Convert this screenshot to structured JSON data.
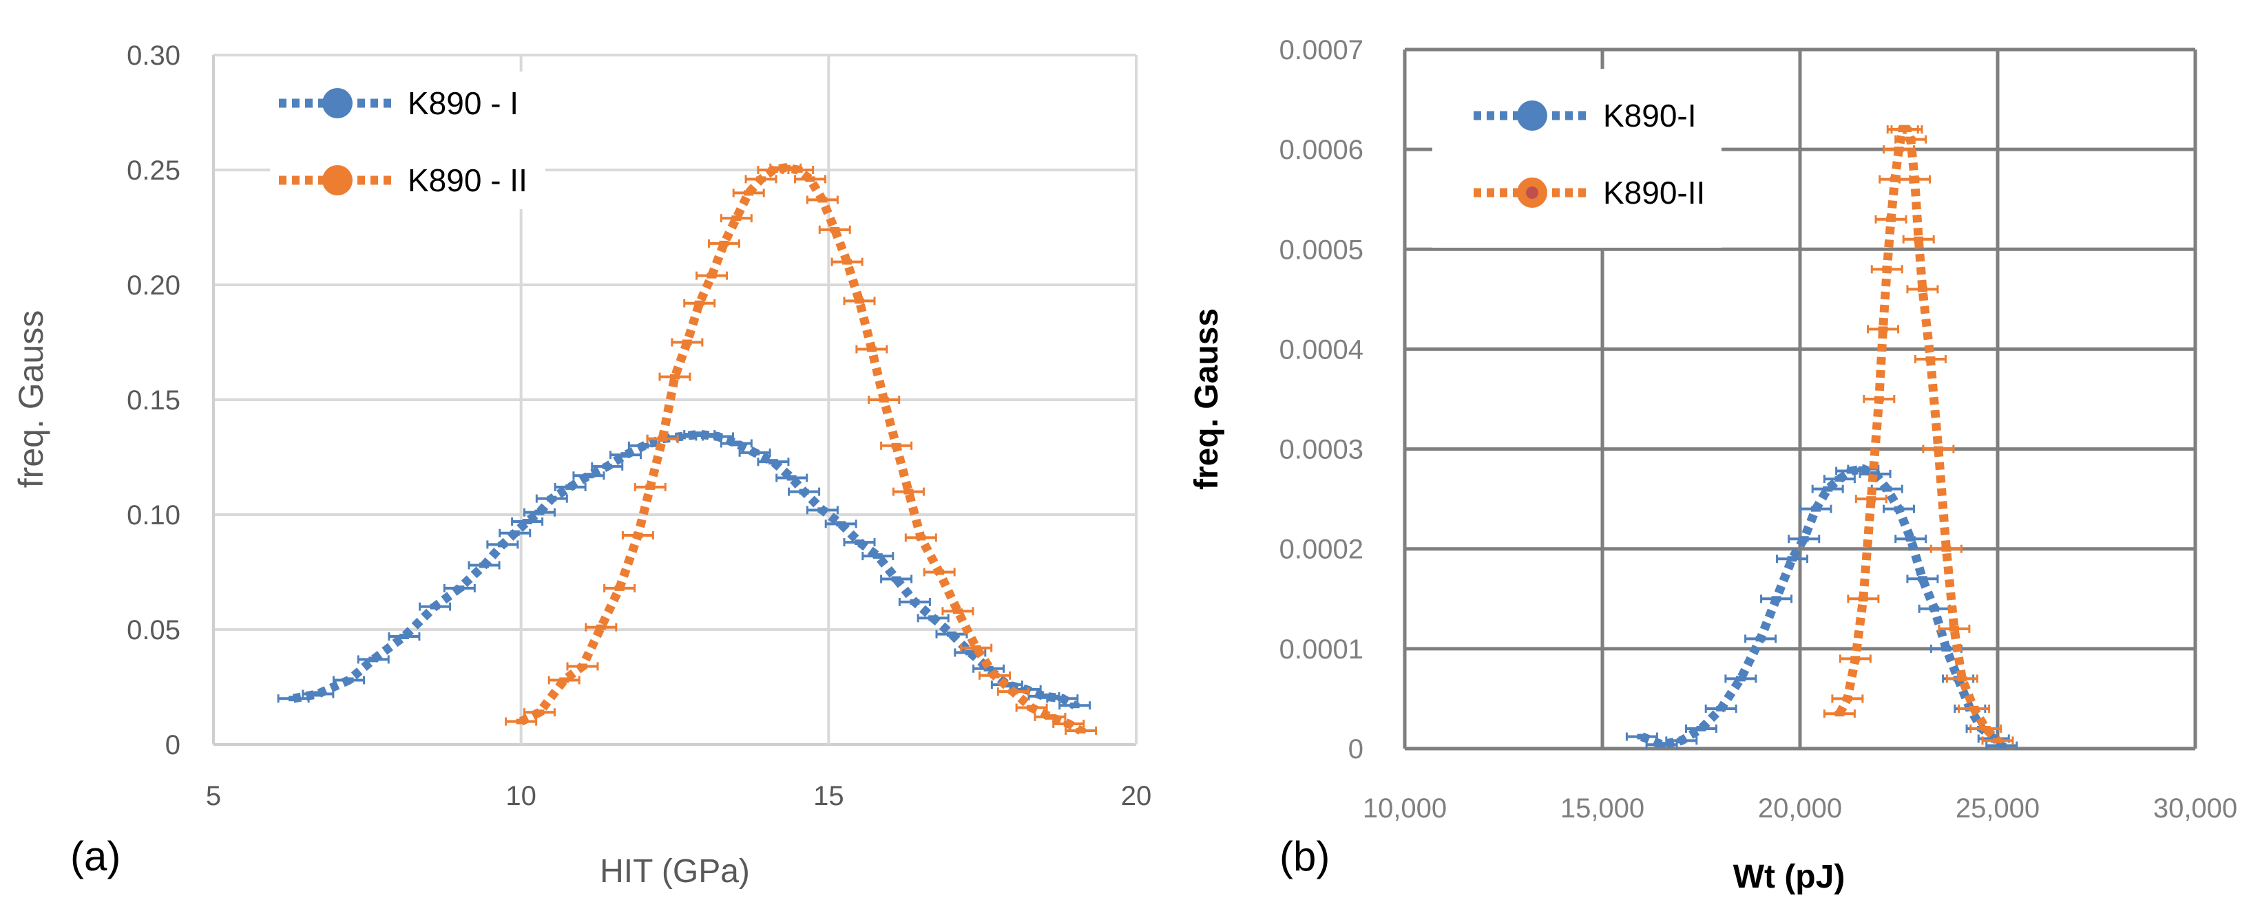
{
  "chart_data": [
    {
      "panel": "(a)",
      "type": "scatter",
      "title": "",
      "xlabel": "HIT (GPa)",
      "ylabel": "freq. Gauss",
      "xlim": [
        5,
        20
      ],
      "ylim": [
        0,
        0.3
      ],
      "x_ticks": [
        "5",
        "10",
        "15",
        "20"
      ],
      "y_ticks": [
        "0",
        "0.05",
        "0.10",
        "0.15",
        "0.20",
        "0.25",
        "0.30"
      ],
      "grid": true,
      "legend_position": "top-left",
      "series": [
        {
          "name": "K890 - I",
          "color": "#4E81BD",
          "points": [
            [
              6.3,
              0.02
            ],
            [
              6.7,
              0.022
            ],
            [
              7.2,
              0.028
            ],
            [
              7.6,
              0.037
            ],
            [
              8.1,
              0.047
            ],
            [
              8.6,
              0.06
            ],
            [
              9.0,
              0.068
            ],
            [
              9.4,
              0.078
            ],
            [
              9.7,
              0.087
            ],
            [
              9.9,
              0.092
            ],
            [
              10.1,
              0.097
            ],
            [
              10.3,
              0.101
            ],
            [
              10.5,
              0.107
            ],
            [
              10.8,
              0.112
            ],
            [
              11.1,
              0.117
            ],
            [
              11.4,
              0.121
            ],
            [
              11.7,
              0.126
            ],
            [
              12.0,
              0.13
            ],
            [
              12.3,
              0.133
            ],
            [
              12.6,
              0.134
            ],
            [
              12.9,
              0.135
            ],
            [
              13.2,
              0.134
            ],
            [
              13.5,
              0.131
            ],
            [
              13.8,
              0.127
            ],
            [
              14.1,
              0.123
            ],
            [
              14.4,
              0.116
            ],
            [
              14.6,
              0.11
            ],
            [
              14.9,
              0.102
            ],
            [
              15.2,
              0.096
            ],
            [
              15.5,
              0.088
            ],
            [
              15.8,
              0.082
            ],
            [
              16.1,
              0.072
            ],
            [
              16.4,
              0.062
            ],
            [
              16.7,
              0.055
            ],
            [
              17.0,
              0.048
            ],
            [
              17.3,
              0.04
            ],
            [
              17.6,
              0.033
            ],
            [
              17.9,
              0.026
            ],
            [
              18.2,
              0.024
            ],
            [
              18.5,
              0.021
            ],
            [
              18.8,
              0.02
            ],
            [
              19.0,
              0.017
            ]
          ]
        },
        {
          "name": "K890 - II",
          "color": "#ED7D31",
          "points": [
            [
              10.0,
              0.01
            ],
            [
              10.3,
              0.014
            ],
            [
              10.7,
              0.028
            ],
            [
              11.0,
              0.034
            ],
            [
              11.3,
              0.051
            ],
            [
              11.6,
              0.068
            ],
            [
              11.9,
              0.091
            ],
            [
              12.1,
              0.112
            ],
            [
              12.3,
              0.133
            ],
            [
              12.5,
              0.16
            ],
            [
              12.7,
              0.175
            ],
            [
              12.9,
              0.192
            ],
            [
              13.1,
              0.204
            ],
            [
              13.3,
              0.218
            ],
            [
              13.5,
              0.229
            ],
            [
              13.7,
              0.24
            ],
            [
              13.9,
              0.246
            ],
            [
              14.1,
              0.25
            ],
            [
              14.3,
              0.251
            ],
            [
              14.5,
              0.25
            ],
            [
              14.7,
              0.246
            ],
            [
              14.9,
              0.237
            ],
            [
              15.1,
              0.224
            ],
            [
              15.3,
              0.21
            ],
            [
              15.5,
              0.193
            ],
            [
              15.7,
              0.172
            ],
            [
              15.9,
              0.15
            ],
            [
              16.1,
              0.13
            ],
            [
              16.3,
              0.11
            ],
            [
              16.5,
              0.09
            ],
            [
              16.8,
              0.075
            ],
            [
              17.1,
              0.058
            ],
            [
              17.4,
              0.042
            ],
            [
              17.7,
              0.03
            ],
            [
              18.0,
              0.023
            ],
            [
              18.3,
              0.016
            ],
            [
              18.6,
              0.012
            ],
            [
              18.9,
              0.009
            ],
            [
              19.1,
              0.006
            ]
          ]
        }
      ]
    },
    {
      "panel": "(b)",
      "type": "scatter",
      "title": "",
      "xlabel": "Wt (pJ)",
      "ylabel": "freq. Gauss",
      "xlim": [
        10000,
        30000
      ],
      "ylim": [
        0,
        0.0007
      ],
      "x_ticks": [
        "10,000",
        "15,000",
        "20,000",
        "25,000",
        "30,000"
      ],
      "y_ticks": [
        "0",
        "0.0001",
        "0.0002",
        "0.0003",
        "0.0004",
        "0.0005",
        "0.0006",
        "0.0007"
      ],
      "grid": true,
      "legend_position": "top-left",
      "series": [
        {
          "name": "K890-I",
          "color": "#4E81BD",
          "points": [
            [
              16000,
              1.2e-05
            ],
            [
              16500,
              4e-06
            ],
            [
              17000,
              8e-06
            ],
            [
              17500,
              2e-05
            ],
            [
              18000,
              4e-05
            ],
            [
              18500,
              7e-05
            ],
            [
              19000,
              0.00011
            ],
            [
              19400,
              0.00015
            ],
            [
              19800,
              0.00019
            ],
            [
              20100,
              0.00021
            ],
            [
              20400,
              0.00024
            ],
            [
              20700,
              0.00026
            ],
            [
              21000,
              0.00027
            ],
            [
              21300,
              0.000278
            ],
            [
              21600,
              0.00028
            ],
            [
              21900,
              0.000275
            ],
            [
              22200,
              0.00026
            ],
            [
              22500,
              0.00024
            ],
            [
              22800,
              0.00021
            ],
            [
              23100,
              0.00017
            ],
            [
              23400,
              0.00014
            ],
            [
              23700,
              0.0001
            ],
            [
              24000,
              7e-05
            ],
            [
              24300,
              4e-05
            ],
            [
              24600,
              2e-05
            ],
            [
              24900,
              1e-05
            ],
            [
              25100,
              3e-06
            ]
          ]
        },
        {
          "name": "K890-II",
          "color": "#ED7D31",
          "points": [
            [
              21000,
              3.5e-05
            ],
            [
              21200,
              5e-05
            ],
            [
              21400,
              9e-05
            ],
            [
              21600,
              0.00015
            ],
            [
              21800,
              0.00025
            ],
            [
              22000,
              0.00035
            ],
            [
              22100,
              0.00042
            ],
            [
              22200,
              0.00048
            ],
            [
              22300,
              0.00053
            ],
            [
              22400,
              0.00057
            ],
            [
              22500,
              0.0006
            ],
            [
              22600,
              0.00062
            ],
            [
              22700,
              0.00062
            ],
            [
              22800,
              0.00061
            ],
            [
              22900,
              0.00057
            ],
            [
              23000,
              0.00051
            ],
            [
              23100,
              0.00046
            ],
            [
              23300,
              0.00039
            ],
            [
              23500,
              0.0003
            ],
            [
              23700,
              0.0002
            ],
            [
              23900,
              0.00012
            ],
            [
              24100,
              7e-05
            ],
            [
              24400,
              4e-05
            ],
            [
              24700,
              2e-05
            ],
            [
              25000,
              8e-06
            ]
          ]
        }
      ]
    }
  ]
}
